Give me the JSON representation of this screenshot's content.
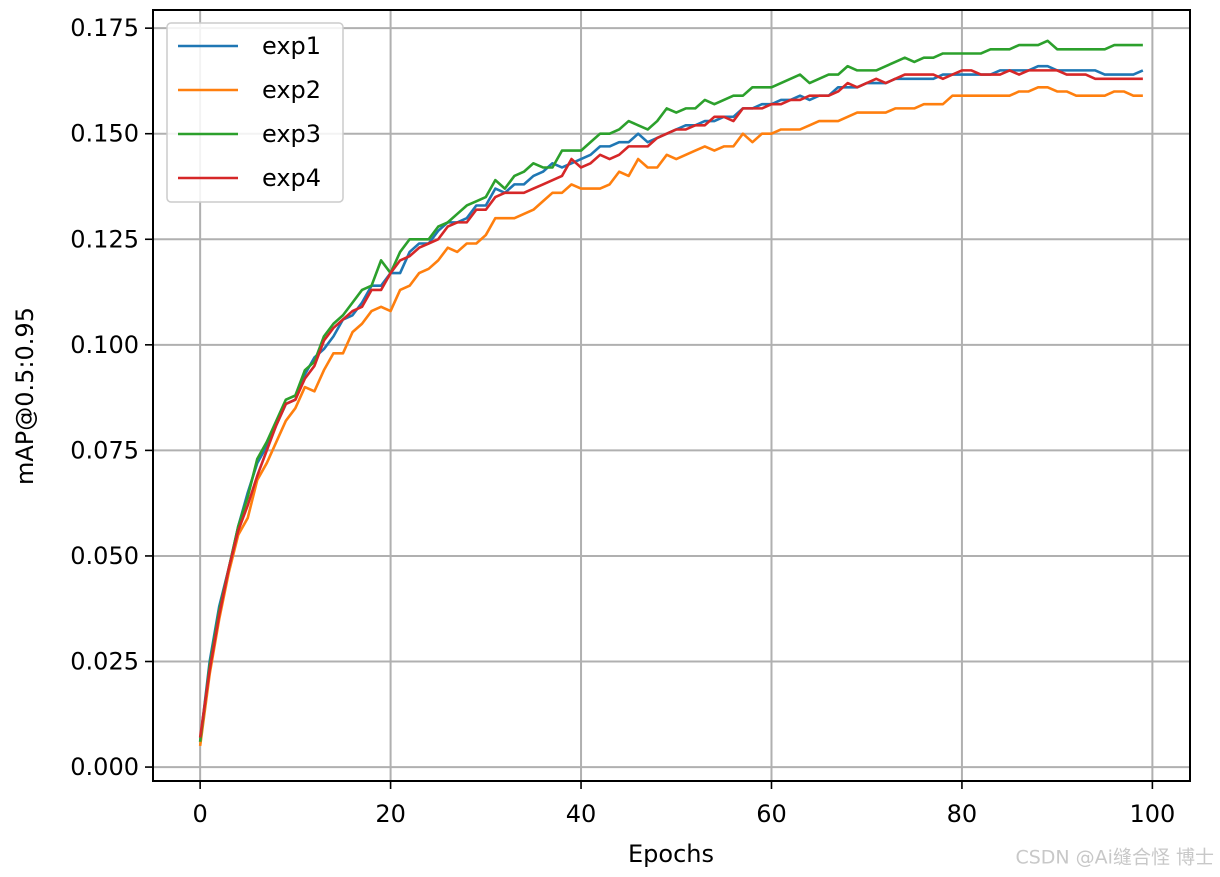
{
  "chart_data": {
    "type": "line",
    "xlabel": "Epochs",
    "ylabel": "mAP@0.5:0.95",
    "x": [
      0,
      1,
      2,
      3,
      4,
      5,
      6,
      7,
      8,
      9,
      10,
      11,
      12,
      13,
      14,
      15,
      16,
      17,
      18,
      19,
      20,
      21,
      22,
      23,
      24,
      25,
      26,
      27,
      28,
      29,
      30,
      31,
      32,
      33,
      34,
      35,
      36,
      37,
      38,
      39,
      40,
      41,
      42,
      43,
      44,
      45,
      46,
      47,
      48,
      49,
      50,
      51,
      52,
      53,
      54,
      55,
      56,
      57,
      58,
      59,
      60,
      61,
      62,
      63,
      64,
      65,
      66,
      67,
      68,
      69,
      70,
      71,
      72,
      73,
      74,
      75,
      76,
      77,
      78,
      79,
      80,
      81,
      82,
      83,
      84,
      85,
      86,
      87,
      88,
      89,
      90,
      91,
      92,
      93,
      94,
      95,
      96,
      97,
      98,
      99
    ],
    "series": [
      {
        "name": "exp1",
        "color": "#1f77b4",
        "values": [
          0.006,
          0.025,
          0.038,
          0.047,
          0.057,
          0.065,
          0.072,
          0.076,
          0.081,
          0.086,
          0.087,
          0.093,
          0.097,
          0.099,
          0.102,
          0.106,
          0.107,
          0.11,
          0.114,
          0.114,
          0.117,
          0.117,
          0.122,
          0.124,
          0.124,
          0.127,
          0.129,
          0.129,
          0.13,
          0.133,
          0.133,
          0.137,
          0.136,
          0.138,
          0.138,
          0.14,
          0.141,
          0.143,
          0.142,
          0.143,
          0.144,
          0.145,
          0.147,
          0.147,
          0.148,
          0.148,
          0.15,
          0.148,
          0.149,
          0.15,
          0.151,
          0.152,
          0.152,
          0.153,
          0.153,
          0.154,
          0.154,
          0.156,
          0.156,
          0.157,
          0.157,
          0.158,
          0.158,
          0.159,
          0.158,
          0.159,
          0.159,
          0.161,
          0.161,
          0.161,
          0.162,
          0.162,
          0.162,
          0.163,
          0.163,
          0.163,
          0.163,
          0.163,
          0.164,
          0.164,
          0.164,
          0.164,
          0.164,
          0.164,
          0.165,
          0.165,
          0.165,
          0.165,
          0.166,
          0.166,
          0.165,
          0.165,
          0.165,
          0.165,
          0.165,
          0.164,
          0.164,
          0.164,
          0.164,
          0.165
        ]
      },
      {
        "name": "exp2",
        "color": "#ff7f0e",
        "values": [
          0.005,
          0.022,
          0.035,
          0.046,
          0.055,
          0.059,
          0.068,
          0.072,
          0.077,
          0.082,
          0.085,
          0.09,
          0.089,
          0.094,
          0.098,
          0.098,
          0.103,
          0.105,
          0.108,
          0.109,
          0.108,
          0.113,
          0.114,
          0.117,
          0.118,
          0.12,
          0.123,
          0.122,
          0.124,
          0.124,
          0.126,
          0.13,
          0.13,
          0.13,
          0.131,
          0.132,
          0.134,
          0.136,
          0.136,
          0.138,
          0.137,
          0.137,
          0.137,
          0.138,
          0.141,
          0.14,
          0.144,
          0.142,
          0.142,
          0.145,
          0.144,
          0.145,
          0.146,
          0.147,
          0.146,
          0.147,
          0.147,
          0.15,
          0.148,
          0.15,
          0.15,
          0.151,
          0.151,
          0.151,
          0.152,
          0.153,
          0.153,
          0.153,
          0.154,
          0.155,
          0.155,
          0.155,
          0.155,
          0.156,
          0.156,
          0.156,
          0.157,
          0.157,
          0.157,
          0.159,
          0.159,
          0.159,
          0.159,
          0.159,
          0.159,
          0.159,
          0.16,
          0.16,
          0.161,
          0.161,
          0.16,
          0.16,
          0.159,
          0.159,
          0.159,
          0.159,
          0.16,
          0.16,
          0.159,
          0.159
        ]
      },
      {
        "name": "exp3",
        "color": "#2ca02c",
        "values": [
          0.006,
          0.024,
          0.037,
          0.047,
          0.057,
          0.064,
          0.073,
          0.077,
          0.082,
          0.087,
          0.088,
          0.094,
          0.096,
          0.102,
          0.105,
          0.107,
          0.11,
          0.113,
          0.114,
          0.12,
          0.117,
          0.122,
          0.125,
          0.125,
          0.125,
          0.128,
          0.129,
          0.131,
          0.133,
          0.134,
          0.135,
          0.139,
          0.137,
          0.14,
          0.141,
          0.143,
          0.142,
          0.142,
          0.146,
          0.146,
          0.146,
          0.148,
          0.15,
          0.15,
          0.151,
          0.153,
          0.152,
          0.151,
          0.153,
          0.156,
          0.155,
          0.156,
          0.156,
          0.158,
          0.157,
          0.158,
          0.159,
          0.159,
          0.161,
          0.161,
          0.161,
          0.162,
          0.163,
          0.164,
          0.162,
          0.163,
          0.164,
          0.164,
          0.166,
          0.165,
          0.165,
          0.165,
          0.166,
          0.167,
          0.168,
          0.167,
          0.168,
          0.168,
          0.169,
          0.169,
          0.169,
          0.169,
          0.169,
          0.17,
          0.17,
          0.17,
          0.171,
          0.171,
          0.171,
          0.172,
          0.17,
          0.17,
          0.17,
          0.17,
          0.17,
          0.17,
          0.171,
          0.171,
          0.171,
          0.171
        ]
      },
      {
        "name": "exp4",
        "color": "#d62728",
        "values": [
          0.007,
          0.023,
          0.036,
          0.047,
          0.056,
          0.062,
          0.069,
          0.075,
          0.081,
          0.086,
          0.087,
          0.092,
          0.095,
          0.101,
          0.104,
          0.106,
          0.108,
          0.109,
          0.113,
          0.113,
          0.117,
          0.12,
          0.121,
          0.123,
          0.124,
          0.125,
          0.128,
          0.129,
          0.129,
          0.132,
          0.132,
          0.135,
          0.136,
          0.136,
          0.136,
          0.137,
          0.138,
          0.139,
          0.14,
          0.144,
          0.142,
          0.143,
          0.145,
          0.144,
          0.145,
          0.147,
          0.147,
          0.147,
          0.149,
          0.15,
          0.151,
          0.151,
          0.152,
          0.152,
          0.154,
          0.154,
          0.153,
          0.156,
          0.156,
          0.156,
          0.157,
          0.157,
          0.158,
          0.158,
          0.159,
          0.159,
          0.159,
          0.16,
          0.162,
          0.161,
          0.162,
          0.163,
          0.162,
          0.163,
          0.164,
          0.164,
          0.164,
          0.164,
          0.163,
          0.164,
          0.165,
          0.165,
          0.164,
          0.164,
          0.164,
          0.165,
          0.164,
          0.165,
          0.165,
          0.165,
          0.165,
          0.164,
          0.164,
          0.164,
          0.163,
          0.163,
          0.163,
          0.163,
          0.163,
          0.163
        ]
      }
    ],
    "xlim": [
      -4.95,
      103.95
    ],
    "xticks": [
      0,
      20,
      40,
      60,
      80,
      100
    ],
    "ylim": [
      -0.0033,
      0.1793
    ],
    "yticks": [
      {
        "value": 0,
        "label": "0.000"
      },
      {
        "value": 0.025,
        "label": "0.025"
      },
      {
        "value": 0.05,
        "label": "0.050"
      },
      {
        "value": 0.075,
        "label": "0.075"
      },
      {
        "value": 0.1,
        "label": "0.100"
      },
      {
        "value": 0.125,
        "label": "0.125"
      },
      {
        "value": 0.15,
        "label": "0.150"
      },
      {
        "value": 0.175,
        "label": "0.175"
      }
    ],
    "grid": true,
    "legend": "upper left",
    "watermark": "CSDN @Ai缝合怪 博士"
  }
}
